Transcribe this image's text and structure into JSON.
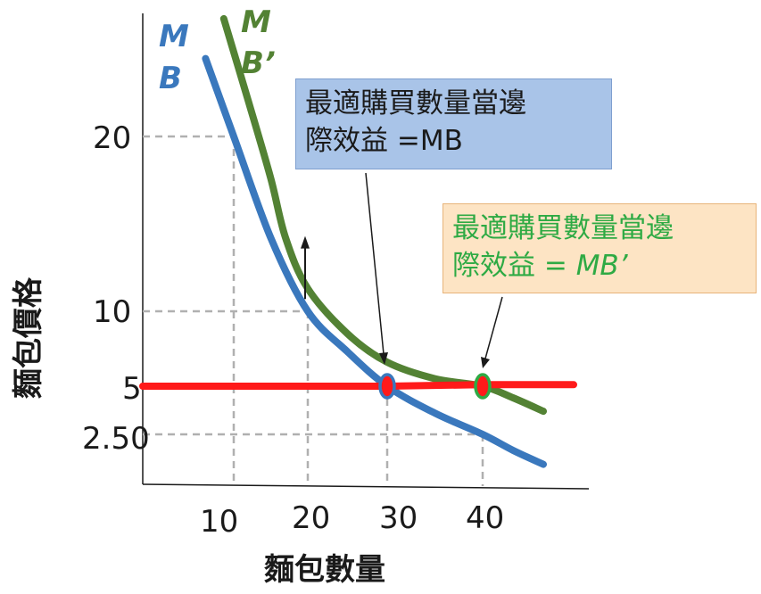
{
  "chart_data": {
    "type": "line",
    "xlabel": "麵包數量",
    "ylabel": "麵包價格",
    "x_ticks": [
      10,
      20,
      30,
      40
    ],
    "y_ticks": [
      "20",
      "10",
      "5",
      "2.50"
    ],
    "series": [
      {
        "name": "MB",
        "color": "#3a78bd",
        "points": [
          [
            6.9,
            24.5
          ],
          [
            10,
            20
          ],
          [
            15,
            14.2
          ],
          [
            20,
            10
          ],
          [
            25,
            7.3
          ],
          [
            30,
            5
          ],
          [
            35,
            3.6
          ],
          [
            40,
            2.5
          ],
          [
            45,
            1.7
          ],
          [
            50,
            1.0
          ]
        ]
      },
      {
        "name": "MB’",
        "color": "#538234",
        "points": [
          [
            8.9,
            26.8
          ],
          [
            12,
            22
          ],
          [
            15,
            17.6
          ],
          [
            17,
            14.2
          ],
          [
            20,
            11.3
          ],
          [
            25,
            8.5
          ],
          [
            30,
            6.6
          ],
          [
            35,
            5.5
          ],
          [
            40,
            5
          ],
          [
            45,
            4.4
          ],
          [
            50,
            3.7
          ]
        ]
      },
      {
        "name": "price",
        "color": "#ff1a1a",
        "points": [
          [
            0,
            5
          ],
          [
            30,
            5
          ],
          [
            40,
            5.1
          ],
          [
            55,
            5.1
          ]
        ]
      }
    ],
    "guides": [
      {
        "x": 10,
        "y": 20
      },
      {
        "x": 20,
        "y": 10
      },
      {
        "x": 30,
        "y": 5
      },
      {
        "x": 40,
        "y": 2.5
      }
    ],
    "equilibria": [
      {
        "x": 30,
        "y": 5,
        "fill": "#ff1a1a",
        "stroke": "#3a78bd"
      },
      {
        "x": 40,
        "y": 5,
        "fill": "#ff1a1a",
        "stroke": "#2eaa44"
      }
    ],
    "shift_arrow": {
      "x": 20,
      "from": 10.7,
      "to": 14.2
    },
    "annotations": [
      {
        "line1": "最適購買數量當邊",
        "line2": "際效益 =MB"
      },
      {
        "line1": "最適購買數量當邊",
        "line2_a": "際效益 = ",
        "line2_b": "MB’"
      }
    ],
    "curve_labels": {
      "mb_1": "M",
      "mb_2": "B",
      "mbp_1": "M",
      "mbp_2": "B’"
    },
    "colors": {
      "mb": "#3a78bd",
      "mb_prime": "#538234",
      "price": "#ff1a1a",
      "guide": "#b0b0b0",
      "axis": "#1a1a1a",
      "callout_green_text": "#2eaa44"
    }
  }
}
